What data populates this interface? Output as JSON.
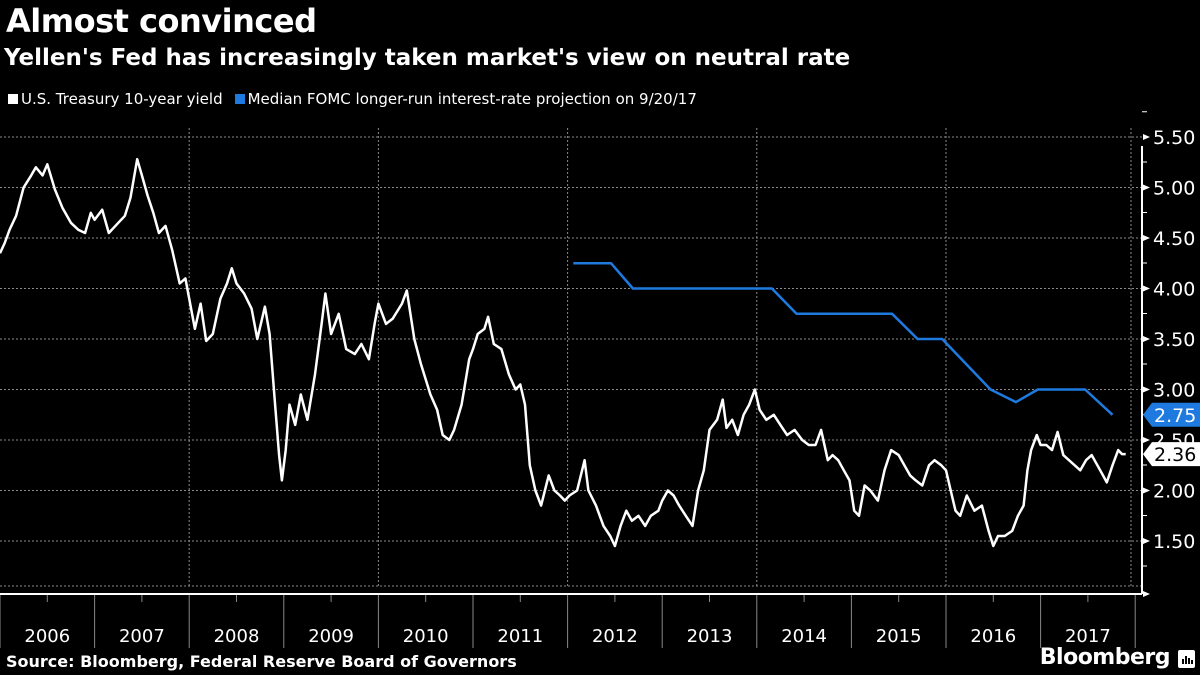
{
  "header": {
    "title": "Almost convinced",
    "subtitle": "Yellen's Fed has increasingly taken market's view on neutral rate"
  },
  "footer": {
    "source": "Source: Bloomberg, Federal Reserve Board of Governors",
    "brand": "Bloomberg"
  },
  "colors": {
    "background": "#000000",
    "treasury": "#ffffff",
    "fomc": "#1f7ae0",
    "grid": "#8a8a8a"
  },
  "chart_data": {
    "type": "line",
    "title": "Almost convinced",
    "subtitle": "Yellen's Fed has increasingly taken market's view on neutral rate",
    "xlabel": "",
    "ylabel": "",
    "x_ticks": [
      "2006",
      "2007",
      "2008",
      "2009",
      "2010",
      "2011",
      "2012",
      "2013",
      "2014",
      "2015",
      "2016",
      "2017"
    ],
    "xlim": [
      2006.0,
      2017.95
    ],
    "ylim": [
      1.0,
      5.6
    ],
    "y_ticks": [
      "5.50",
      "5.00",
      "4.50",
      "4.00",
      "3.50",
      "3.00",
      "2.50",
      "2.00",
      "1.50"
    ],
    "y_tick_values": [
      5.5,
      5.0,
      4.5,
      4.0,
      3.5,
      3.0,
      2.5,
      2.0,
      1.5
    ],
    "y_axis_position": "right",
    "grid": true,
    "legend_position": "top-left",
    "series": [
      {
        "name": "U.S. Treasury 10-year yield",
        "color": "#ffffff",
        "last_value_label": "2.36",
        "points": [
          [
            2006.0,
            4.35
          ],
          [
            2006.05,
            4.45
          ],
          [
            2006.1,
            4.58
          ],
          [
            2006.17,
            4.72
          ],
          [
            2006.25,
            5.0
          ],
          [
            2006.33,
            5.12
          ],
          [
            2006.38,
            5.2
          ],
          [
            2006.45,
            5.12
          ],
          [
            2006.5,
            5.23
          ],
          [
            2006.58,
            4.98
          ],
          [
            2006.66,
            4.8
          ],
          [
            2006.75,
            4.65
          ],
          [
            2006.83,
            4.58
          ],
          [
            2006.9,
            4.55
          ],
          [
            2006.96,
            4.75
          ],
          [
            2007.0,
            4.68
          ],
          [
            2007.08,
            4.78
          ],
          [
            2007.15,
            4.55
          ],
          [
            2007.25,
            4.65
          ],
          [
            2007.32,
            4.72
          ],
          [
            2007.38,
            4.9
          ],
          [
            2007.45,
            5.28
          ],
          [
            2007.5,
            5.12
          ],
          [
            2007.56,
            4.92
          ],
          [
            2007.62,
            4.75
          ],
          [
            2007.68,
            4.55
          ],
          [
            2007.75,
            4.62
          ],
          [
            2007.82,
            4.38
          ],
          [
            2007.9,
            4.05
          ],
          [
            2007.96,
            4.1
          ],
          [
            2008.0,
            3.9
          ],
          [
            2008.06,
            3.6
          ],
          [
            2008.12,
            3.85
          ],
          [
            2008.18,
            3.48
          ],
          [
            2008.25,
            3.55
          ],
          [
            2008.33,
            3.9
          ],
          [
            2008.4,
            4.05
          ],
          [
            2008.45,
            4.2
          ],
          [
            2008.5,
            4.05
          ],
          [
            2008.58,
            3.95
          ],
          [
            2008.66,
            3.8
          ],
          [
            2008.72,
            3.5
          ],
          [
            2008.8,
            3.82
          ],
          [
            2008.85,
            3.55
          ],
          [
            2008.9,
            2.95
          ],
          [
            2008.95,
            2.35
          ],
          [
            2008.98,
            2.1
          ],
          [
            2009.02,
            2.4
          ],
          [
            2009.06,
            2.85
          ],
          [
            2009.12,
            2.65
          ],
          [
            2009.18,
            2.95
          ],
          [
            2009.25,
            2.7
          ],
          [
            2009.33,
            3.15
          ],
          [
            2009.4,
            3.65
          ],
          [
            2009.44,
            3.95
          ],
          [
            2009.5,
            3.55
          ],
          [
            2009.58,
            3.75
          ],
          [
            2009.66,
            3.4
          ],
          [
            2009.75,
            3.35
          ],
          [
            2009.82,
            3.45
          ],
          [
            2009.9,
            3.3
          ],
          [
            2009.96,
            3.65
          ],
          [
            2010.0,
            3.85
          ],
          [
            2010.08,
            3.65
          ],
          [
            2010.15,
            3.7
          ],
          [
            2010.25,
            3.85
          ],
          [
            2010.3,
            3.98
          ],
          [
            2010.38,
            3.5
          ],
          [
            2010.45,
            3.25
          ],
          [
            2010.55,
            2.95
          ],
          [
            2010.62,
            2.8
          ],
          [
            2010.68,
            2.55
          ],
          [
            2010.75,
            2.5
          ],
          [
            2010.8,
            2.6
          ],
          [
            2010.88,
            2.85
          ],
          [
            2010.96,
            3.3
          ],
          [
            2011.0,
            3.4
          ],
          [
            2011.05,
            3.55
          ],
          [
            2011.12,
            3.6
          ],
          [
            2011.16,
            3.72
          ],
          [
            2011.22,
            3.45
          ],
          [
            2011.3,
            3.4
          ],
          [
            2011.38,
            3.15
          ],
          [
            2011.45,
            3.0
          ],
          [
            2011.5,
            3.05
          ],
          [
            2011.55,
            2.85
          ],
          [
            2011.6,
            2.25
          ],
          [
            2011.66,
            2.0
          ],
          [
            2011.72,
            1.85
          ],
          [
            2011.8,
            2.15
          ],
          [
            2011.86,
            2.0
          ],
          [
            2011.92,
            1.95
          ],
          [
            2011.97,
            1.9
          ],
          [
            2012.02,
            1.95
          ],
          [
            2012.1,
            2.0
          ],
          [
            2012.18,
            2.3
          ],
          [
            2012.22,
            2.0
          ],
          [
            2012.3,
            1.85
          ],
          [
            2012.38,
            1.65
          ],
          [
            2012.45,
            1.55
          ],
          [
            2012.5,
            1.45
          ],
          [
            2012.56,
            1.65
          ],
          [
            2012.62,
            1.8
          ],
          [
            2012.68,
            1.7
          ],
          [
            2012.75,
            1.75
          ],
          [
            2012.82,
            1.65
          ],
          [
            2012.88,
            1.75
          ],
          [
            2012.96,
            1.8
          ],
          [
            2013.0,
            1.9
          ],
          [
            2013.06,
            2.0
          ],
          [
            2013.12,
            1.95
          ],
          [
            2013.18,
            1.85
          ],
          [
            2013.25,
            1.75
          ],
          [
            2013.32,
            1.65
          ],
          [
            2013.38,
            2.0
          ],
          [
            2013.44,
            2.2
          ],
          [
            2013.5,
            2.6
          ],
          [
            2013.58,
            2.7
          ],
          [
            2013.64,
            2.9
          ],
          [
            2013.68,
            2.62
          ],
          [
            2013.74,
            2.7
          ],
          [
            2013.8,
            2.55
          ],
          [
            2013.86,
            2.75
          ],
          [
            2013.92,
            2.85
          ],
          [
            2013.98,
            3.0
          ],
          [
            2014.03,
            2.8
          ],
          [
            2014.1,
            2.7
          ],
          [
            2014.18,
            2.75
          ],
          [
            2014.25,
            2.65
          ],
          [
            2014.32,
            2.55
          ],
          [
            2014.4,
            2.6
          ],
          [
            2014.48,
            2.5
          ],
          [
            2014.55,
            2.45
          ],
          [
            2014.62,
            2.45
          ],
          [
            2014.68,
            2.6
          ],
          [
            2014.75,
            2.3
          ],
          [
            2014.8,
            2.35
          ],
          [
            2014.86,
            2.3
          ],
          [
            2014.92,
            2.2
          ],
          [
            2014.98,
            2.1
          ],
          [
            2015.03,
            1.8
          ],
          [
            2015.08,
            1.75
          ],
          [
            2015.14,
            2.05
          ],
          [
            2015.2,
            2.0
          ],
          [
            2015.28,
            1.9
          ],
          [
            2015.35,
            2.2
          ],
          [
            2015.42,
            2.4
          ],
          [
            2015.5,
            2.35
          ],
          [
            2015.56,
            2.25
          ],
          [
            2015.62,
            2.15
          ],
          [
            2015.68,
            2.1
          ],
          [
            2015.75,
            2.05
          ],
          [
            2015.82,
            2.25
          ],
          [
            2015.88,
            2.3
          ],
          [
            2015.95,
            2.25
          ],
          [
            2016.0,
            2.2
          ],
          [
            2016.05,
            2.0
          ],
          [
            2016.1,
            1.8
          ],
          [
            2016.15,
            1.75
          ],
          [
            2016.22,
            1.95
          ],
          [
            2016.3,
            1.8
          ],
          [
            2016.38,
            1.85
          ],
          [
            2016.45,
            1.6
          ],
          [
            2016.5,
            1.45
          ],
          [
            2016.55,
            1.55
          ],
          [
            2016.62,
            1.55
          ],
          [
            2016.7,
            1.6
          ],
          [
            2016.76,
            1.75
          ],
          [
            2016.82,
            1.85
          ],
          [
            2016.86,
            2.2
          ],
          [
            2016.9,
            2.4
          ],
          [
            2016.96,
            2.55
          ],
          [
            2017.0,
            2.45
          ],
          [
            2017.06,
            2.45
          ],
          [
            2017.12,
            2.4
          ],
          [
            2017.18,
            2.58
          ],
          [
            2017.24,
            2.35
          ],
          [
            2017.3,
            2.3
          ],
          [
            2017.36,
            2.25
          ],
          [
            2017.42,
            2.2
          ],
          [
            2017.48,
            2.3
          ],
          [
            2017.54,
            2.35
          ],
          [
            2017.6,
            2.25
          ],
          [
            2017.66,
            2.15
          ],
          [
            2017.7,
            2.08
          ],
          [
            2017.76,
            2.25
          ],
          [
            2017.82,
            2.4
          ],
          [
            2017.86,
            2.36
          ],
          [
            2017.9,
            2.36
          ]
        ]
      },
      {
        "name": "Median FOMC longer-run interest-rate projection on 9/20/17",
        "color": "#1f7ae0",
        "last_value_label": "2.75",
        "points": [
          [
            2012.06,
            4.25
          ],
          [
            2012.46,
            4.25
          ],
          [
            2012.69,
            4.0
          ],
          [
            2014.16,
            4.0
          ],
          [
            2014.42,
            3.75
          ],
          [
            2015.43,
            3.75
          ],
          [
            2015.7,
            3.5
          ],
          [
            2015.96,
            3.5
          ],
          [
            2016.47,
            3.0
          ],
          [
            2016.74,
            2.875
          ],
          [
            2016.97,
            3.0
          ],
          [
            2017.47,
            3.0
          ],
          [
            2017.76,
            2.75
          ]
        ]
      }
    ]
  }
}
